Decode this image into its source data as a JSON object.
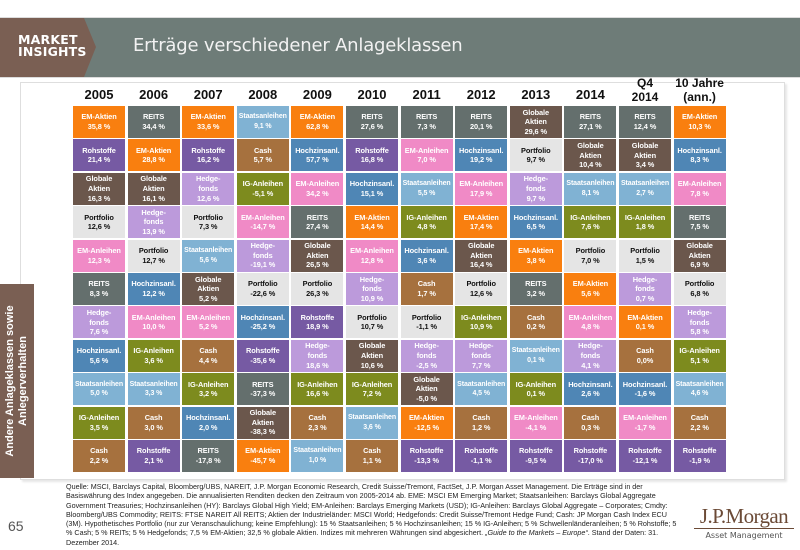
{
  "header": {
    "brand_line1": "MARKET",
    "brand_line2": "INSIGHTS",
    "title": "Erträge verschiedener Anlageklassen"
  },
  "side_tab": {
    "line1": "Andere Anlageklassen sowie",
    "line2": "Anlegerverhalten"
  },
  "page_number": "65",
  "logo": {
    "main": "J.P.Morgan",
    "sub": "Asset Management"
  },
  "footnote": {
    "text": "Quelle: MSCI, Barclays Capital, Bloomberg/UBS, NAREIT, J.P. Morgan Economic Research, Credit Suisse/Tremont, FactSet, J.P. Morgan Asset Management. Die Erträge sind in der Basiswährung des Index angegeben. Die annualisierten Renditen decken den Zeitraum von 2005-2014 ab. EME: MSCI EM Emerging Market; Staatsanleihen: Barclays Global Aggregate Government Treasuries; Hochzinsanleihen (HY): Barclays Global High Yield; EM-Anleihen: Barclays Emerging Markets (USD); IG-Anleihen: Barclays Global Aggregate – Corporates; Cmdty: Bloomberg/UBS Commodity; REITS: FTSE NAREIT All REITS; Aktien der Industrieländer: MSCI World; Hedgefonds: Credit Suisse/Tremont Hedge Fund; Cash: JP Morgan Cash Index ECU (3M). Hypothetisches Portfolio (nur zur Veranschaulichung; keine Empfehlung): 15 % Staatsanleihen; 5 % Hochzinsanleihen; 15 % IG-Anleihen; 5 % Schwellenländeranleihen; 5 % Rohstoffe; 5 % Cash; 5 % REITs; 5 % Hedgefonds; 7,5 % EM-Aktien; 32,5 % globale Aktien. Indizes mit mehreren Währungen sind abgesichert. ",
    "italic": "„Guide to the Markets – Europe“",
    "tail": ". Stand der Daten: 31. Dezember 2014."
  },
  "asset_colors": {
    "EM-Aktien": "#f97f0f",
    "REITS": "#646f6d",
    "Rohstoffe": "#765aa3",
    "Globale Aktien": "#6b574c",
    "Portfolio": "#e5e5e5",
    "EM-Anleihen": "#f08ac6",
    "Hedgefonds": "#bc9adb",
    "Hochzinsanl.": "#4f86b5",
    "Staatsanleihen": "#80b2d3",
    "IG-Anleihen": "#7d8b1e",
    "Cash": "#a6713e"
  },
  "chart_data": {
    "type": "table",
    "title": "Erträge verschiedener Anlageklassen",
    "columns": [
      "2005",
      "2006",
      "2007",
      "2008",
      "2009",
      "2010",
      "2011",
      "2012",
      "2013",
      "2014",
      "Q4 2014",
      "10 Jahre (ann.)"
    ],
    "units": "%",
    "ranked": [
      [
        {
          "asset": "EM-Aktien",
          "value": "35,8 %"
        },
        {
          "asset": "Rohstoffe",
          "value": "21,4 %"
        },
        {
          "asset": "Globale Aktien",
          "value": "16,3 %"
        },
        {
          "asset": "Portfolio",
          "value": "12,6 %"
        },
        {
          "asset": "EM-Anleihen",
          "value": "12,3 %"
        },
        {
          "asset": "REITS",
          "value": "8,3 %"
        },
        {
          "asset": "Hedgefonds",
          "value": "7,6 %"
        },
        {
          "asset": "Hochzinsanl.",
          "value": "5,6 %"
        },
        {
          "asset": "Staatsanleihen",
          "value": "5,0 %"
        },
        {
          "asset": "IG-Anleihen",
          "value": "3,5 %"
        },
        {
          "asset": "Cash",
          "value": "2,2 %"
        }
      ],
      [
        {
          "asset": "REITS",
          "value": "34,4 %"
        },
        {
          "asset": "EM-Aktien",
          "value": "28,8 %"
        },
        {
          "asset": "Globale Aktien",
          "value": "16,1 %"
        },
        {
          "asset": "Hedgefonds",
          "value": "13,9 %"
        },
        {
          "asset": "Portfolio",
          "value": "12,7 %"
        },
        {
          "asset": "Hochzinsanl.",
          "value": "12,2 %"
        },
        {
          "asset": "EM-Anleihen",
          "value": "10,0 %"
        },
        {
          "asset": "IG-Anleihen",
          "value": "3,6 %"
        },
        {
          "asset": "Staatsanleihen",
          "value": "3,3 %"
        },
        {
          "asset": "Cash",
          "value": "3,0 %"
        },
        {
          "asset": "Rohstoffe",
          "value": "2,1 %"
        }
      ],
      [
        {
          "asset": "EM-Aktien",
          "value": "33,6 %"
        },
        {
          "asset": "Rohstoffe",
          "value": "16,2 %"
        },
        {
          "asset": "Hedgefonds",
          "value": "12,6 %"
        },
        {
          "asset": "Portfolio",
          "value": "7,3 %"
        },
        {
          "asset": "Staatsanleihen",
          "value": "5,6 %"
        },
        {
          "asset": "Globale Aktien",
          "value": "5,2 %"
        },
        {
          "asset": "EM-Anleihen",
          "value": "5,2 %"
        },
        {
          "asset": "Cash",
          "value": "4,4 %"
        },
        {
          "asset": "IG-Anleihen",
          "value": "3,2 %"
        },
        {
          "asset": "Hochzinsanl.",
          "value": "2,0 %"
        },
        {
          "asset": "REITS",
          "value": "-17,8 %"
        }
      ],
      [
        {
          "asset": "Staatsanleihen",
          "value": "9,1 %"
        },
        {
          "asset": "Cash",
          "value": "5,7 %"
        },
        {
          "asset": "IG-Anleihen",
          "value": "-5,1 %"
        },
        {
          "asset": "EM-Anleihen",
          "value": "-14,7 %"
        },
        {
          "asset": "Hedgefonds",
          "value": "-19,1 %"
        },
        {
          "asset": "Portfolio",
          "value": "-22,6 %"
        },
        {
          "asset": "Hochzinsanl.",
          "value": "-25,2 %"
        },
        {
          "asset": "Rohstoffe",
          "value": "-35,6 %"
        },
        {
          "asset": "REITS",
          "value": "-37,3 %"
        },
        {
          "asset": "Globale Aktien",
          "value": "-38,3 %"
        },
        {
          "asset": "EM-Aktien",
          "value": "-45,7 %"
        }
      ],
      [
        {
          "asset": "EM-Aktien",
          "value": "62,8 %"
        },
        {
          "asset": "Hochzinsanl.",
          "value": "57,7 %"
        },
        {
          "asset": "EM-Anleihen",
          "value": "34,2 %"
        },
        {
          "asset": "REITS",
          "value": "27,4 %"
        },
        {
          "asset": "Globale Aktien",
          "value": "26,5 %"
        },
        {
          "asset": "Portfolio",
          "value": "26,3 %"
        },
        {
          "asset": "Rohstoffe",
          "value": "18,9 %"
        },
        {
          "asset": "Hedgefonds",
          "value": "18,6 %"
        },
        {
          "asset": "IG-Anleihen",
          "value": "16,6 %"
        },
        {
          "asset": "Cash",
          "value": "2,3 %"
        },
        {
          "asset": "Staatsanleihen",
          "value": "1,0 %"
        }
      ],
      [
        {
          "asset": "REITS",
          "value": "27,6 %"
        },
        {
          "asset": "Rohstoffe",
          "value": "16,8 %"
        },
        {
          "asset": "Hochzinsanl.",
          "value": "15,1 %"
        },
        {
          "asset": "EM-Aktien",
          "value": "14,4 %"
        },
        {
          "asset": "EM-Anleihen",
          "value": "12,8 %"
        },
        {
          "asset": "Hedgefonds",
          "value": "10,9 %"
        },
        {
          "asset": "Portfolio",
          "value": "10,7 %"
        },
        {
          "asset": "Globale Aktien",
          "value": "10,6 %"
        },
        {
          "asset": "IG-Anleihen",
          "value": "7,2 %"
        },
        {
          "asset": "Staatsanleihen",
          "value": "3,6 %"
        },
        {
          "asset": "Cash",
          "value": "1,1 %"
        }
      ],
      [
        {
          "asset": "REITS",
          "value": "7,3 %"
        },
        {
          "asset": "EM-Anleihen",
          "value": "7,0 %"
        },
        {
          "asset": "Staatsanleihen",
          "value": "5,5 %"
        },
        {
          "asset": "IG-Anleihen",
          "value": "4,8 %"
        },
        {
          "asset": "Hochzinsanl.",
          "value": "3,6 %"
        },
        {
          "asset": "Cash",
          "value": "1,7 %"
        },
        {
          "asset": "Portfolio",
          "value": "-1,1 %"
        },
        {
          "asset": "Hedgefonds",
          "value": "-2,5 %"
        },
        {
          "asset": "Globale Aktien",
          "value": "-5,0 %"
        },
        {
          "asset": "EM-Aktien",
          "value": "-12,5 %"
        },
        {
          "asset": "Rohstoffe",
          "value": "-13,3 %"
        }
      ],
      [
        {
          "asset": "REITS",
          "value": "20,1 %"
        },
        {
          "asset": "Hochzinsanl.",
          "value": "19,2 %"
        },
        {
          "asset": "EM-Anleihen",
          "value": "17,9 %"
        },
        {
          "asset": "EM-Aktien",
          "value": "17,4 %"
        },
        {
          "asset": "Globale Aktien",
          "value": "16,4 %"
        },
        {
          "asset": "Portfolio",
          "value": "12,6 %"
        },
        {
          "asset": "IG-Anleihen",
          "value": "10,9 %"
        },
        {
          "asset": "Hedgefonds",
          "value": "7,7 %"
        },
        {
          "asset": "Staatsanleihen",
          "value": "4,5 %"
        },
        {
          "asset": "Cash",
          "value": "1,2 %"
        },
        {
          "asset": "Rohstoffe",
          "value": "-1,1 %"
        }
      ],
      [
        {
          "asset": "Globale Aktien",
          "value": "29,6 %"
        },
        {
          "asset": "Portfolio",
          "value": "9,7 %"
        },
        {
          "asset": "Hedgefonds",
          "value": "9,7 %"
        },
        {
          "asset": "Hochzinsanl.",
          "value": "6,5 %"
        },
        {
          "asset": "EM-Aktien",
          "value": "3,8 %"
        },
        {
          "asset": "REITS",
          "value": "3,2 %"
        },
        {
          "asset": "Cash",
          "value": "0,2 %"
        },
        {
          "asset": "Staatsanleihen",
          "value": "0,1 %"
        },
        {
          "asset": "IG-Anleihen",
          "value": "0,1 %"
        },
        {
          "asset": "EM-Anleihen",
          "value": "-4,1 %"
        },
        {
          "asset": "Rohstoffe",
          "value": "-9,5 %"
        }
      ],
      [
        {
          "asset": "REITS",
          "value": "27,1 %"
        },
        {
          "asset": "Globale Aktien",
          "value": "10,4 %"
        },
        {
          "asset": "Staatsanleihen",
          "value": "8,1 %"
        },
        {
          "asset": "IG-Anleihen",
          "value": "7,6 %"
        },
        {
          "asset": "Portfolio",
          "value": "7,0 %"
        },
        {
          "asset": "EM-Aktien",
          "value": "5,6 %"
        },
        {
          "asset": "EM-Anleihen",
          "value": "4,8 %"
        },
        {
          "asset": "Hedgefonds",
          "value": "4,1 %"
        },
        {
          "asset": "Hochzinsanl.",
          "value": "2,6 %"
        },
        {
          "asset": "Cash",
          "value": "0,3 %"
        },
        {
          "asset": "Rohstoffe",
          "value": "-17,0 %"
        }
      ],
      [
        {
          "asset": "REITS",
          "value": "12,4 %"
        },
        {
          "asset": "Globale Aktien",
          "value": "3,4 %"
        },
        {
          "asset": "Staatsanleihen",
          "value": "2,7 %"
        },
        {
          "asset": "IG-Anleihen",
          "value": "1,8 %"
        },
        {
          "asset": "Portfolio",
          "value": "1,5 %"
        },
        {
          "asset": "Hedgefonds",
          "value": "0,7 %"
        },
        {
          "asset": "EM-Aktien",
          "value": "0,1 %"
        },
        {
          "asset": "Cash",
          "value": "0,0%"
        },
        {
          "asset": "Hochzinsanl.",
          "value": "-1,6 %"
        },
        {
          "asset": "EM-Anleihen",
          "value": "-1,7 %"
        },
        {
          "asset": "Rohstoffe",
          "value": "-12,1 %"
        }
      ],
      [
        {
          "asset": "EM-Aktien",
          "value": "10,3 %"
        },
        {
          "asset": "Hochzinsanl.",
          "value": "8,3 %"
        },
        {
          "asset": "EM-Anleihen",
          "value": "7,8 %"
        },
        {
          "asset": "REITS",
          "value": "7,5 %"
        },
        {
          "asset": "Globale Aktien",
          "value": "6,9 %"
        },
        {
          "asset": "Portfolio",
          "value": "6,8 %"
        },
        {
          "asset": "Hedgefonds",
          "value": "5,8 %"
        },
        {
          "asset": "IG-Anleihen",
          "value": "5,1 %"
        },
        {
          "asset": "Staatsanleihen",
          "value": "4,6 %"
        },
        {
          "asset": "Cash",
          "value": "2,2 %"
        },
        {
          "asset": "Rohstoffe",
          "value": "-1,9 %"
        }
      ]
    ]
  }
}
